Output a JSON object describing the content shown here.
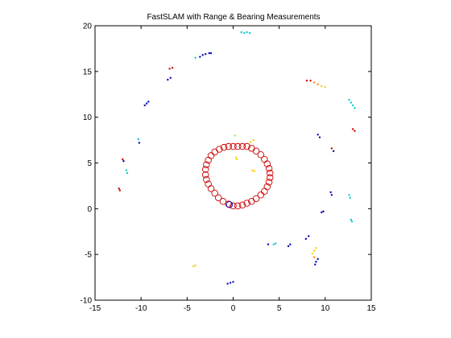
{
  "chart_data": {
    "type": "scatter",
    "title": "FastSLAM with Range & Bearing Measurements",
    "xlabel": "",
    "ylabel": "",
    "xlim": [
      -15,
      15
    ],
    "ylim": [
      -10,
      20
    ],
    "xticks": [
      -15,
      -10,
      -5,
      0,
      5,
      10,
      15
    ],
    "yticks": [
      -10,
      -5,
      0,
      5,
      10,
      15,
      20
    ],
    "grid": false,
    "legend": "none",
    "series": [
      {
        "color": "#cc0000",
        "marker": "circle",
        "points": [
          [
            -0.5,
            0.5
          ],
          [
            0,
            0.3
          ],
          [
            0.5,
            0.3
          ],
          [
            1.0,
            0.4
          ],
          [
            1.5,
            0.6
          ],
          [
            2.0,
            0.8
          ],
          [
            2.5,
            1.1
          ],
          [
            3.0,
            1.5
          ],
          [
            3.4,
            1.9
          ],
          [
            3.7,
            2.4
          ],
          [
            3.9,
            2.9
          ],
          [
            4.0,
            3.4
          ],
          [
            4.0,
            3.9
          ],
          [
            3.9,
            4.4
          ],
          [
            3.7,
            4.9
          ],
          [
            3.4,
            5.4
          ],
          [
            3.0,
            5.9
          ],
          [
            2.5,
            6.3
          ],
          [
            2.0,
            6.6
          ],
          [
            1.5,
            6.8
          ],
          [
            1.0,
            6.8
          ],
          [
            0.5,
            6.8
          ],
          [
            0.0,
            6.8
          ],
          [
            -0.5,
            6.8
          ],
          [
            -1.0,
            6.7
          ],
          [
            -1.5,
            6.5
          ],
          [
            -2.0,
            6.2
          ],
          [
            -2.4,
            5.8
          ],
          [
            -2.7,
            5.3
          ],
          [
            -2.9,
            4.8
          ],
          [
            -3.0,
            4.3
          ],
          [
            -3.0,
            3.7
          ],
          [
            -2.9,
            3.2
          ],
          [
            -2.7,
            2.7
          ],
          [
            -2.4,
            2.2
          ],
          [
            -2.0,
            1.7
          ],
          [
            -1.6,
            1.2
          ],
          [
            -1.1,
            0.8
          ]
        ]
      },
      {
        "color": "#0000cc",
        "marker": "circle",
        "points": [
          [
            -0.4,
            0.45
          ]
        ]
      }
    ],
    "landmarks": [
      {
        "x": 0.9,
        "y": 19.3,
        "color": "#00cccc"
      },
      {
        "x": 1.2,
        "y": 19.2,
        "color": "#00cccc"
      },
      {
        "x": 1.5,
        "y": 19.3,
        "color": "#00cccc"
      },
      {
        "x": 1.8,
        "y": 19.2,
        "color": "#00cccc"
      },
      {
        "x": -3.6,
        "y": 16.6,
        "color": "#0000cc"
      },
      {
        "x": -3.3,
        "y": 16.8,
        "color": "#0000cc"
      },
      {
        "x": -3.0,
        "y": 16.9,
        "color": "#0000cc"
      },
      {
        "x": -2.6,
        "y": 17.0,
        "color": "#0000cc"
      },
      {
        "x": -2.4,
        "y": 17.0,
        "color": "#0000cc"
      },
      {
        "x": -4.1,
        "y": 16.5,
        "color": "#00cccc"
      },
      {
        "x": -6.9,
        "y": 15.3,
        "color": "#cc0000"
      },
      {
        "x": -6.6,
        "y": 15.4,
        "color": "#cc0000"
      },
      {
        "x": -7.1,
        "y": 14.1,
        "color": "#0000cc"
      },
      {
        "x": -6.8,
        "y": 14.3,
        "color": "#0000cc"
      },
      {
        "x": -9.4,
        "y": 11.5,
        "color": "#0000cc"
      },
      {
        "x": -9.2,
        "y": 11.7,
        "color": "#0000cc"
      },
      {
        "x": -9.6,
        "y": 11.3,
        "color": "#000080"
      },
      {
        "x": -10.3,
        "y": 7.6,
        "color": "#00cccc"
      },
      {
        "x": -10.2,
        "y": 7.2,
        "color": "#0000cc"
      },
      {
        "x": -12.0,
        "y": 5.4,
        "color": "#cc0000"
      },
      {
        "x": -11.9,
        "y": 5.2,
        "color": "#0000cc"
      },
      {
        "x": -11.6,
        "y": 4.2,
        "color": "#00cccc"
      },
      {
        "x": -11.5,
        "y": 3.9,
        "color": "#00cccc"
      },
      {
        "x": -12.4,
        "y": 2.2,
        "color": "#cc0000"
      },
      {
        "x": -12.3,
        "y": 2.0,
        "color": "#cc0000"
      },
      {
        "x": 8.0,
        "y": 14.0,
        "color": "#cc0000"
      },
      {
        "x": 8.4,
        "y": 14.0,
        "color": "#cc0000"
      },
      {
        "x": 8.8,
        "y": 13.8,
        "color": "#ff8800"
      },
      {
        "x": 9.2,
        "y": 13.6,
        "color": "#ff8800"
      },
      {
        "x": 9.6,
        "y": 13.4,
        "color": "#ffcc00"
      },
      {
        "x": 10.0,
        "y": 13.3,
        "color": "#ffcc00"
      },
      {
        "x": 12.6,
        "y": 11.9,
        "color": "#00cccc"
      },
      {
        "x": 12.8,
        "y": 11.6,
        "color": "#00cccc"
      },
      {
        "x": 13.0,
        "y": 11.3,
        "color": "#00cccc"
      },
      {
        "x": 13.2,
        "y": 11.0,
        "color": "#00cccc"
      },
      {
        "x": 13.0,
        "y": 8.7,
        "color": "#cc0000"
      },
      {
        "x": 13.2,
        "y": 8.5,
        "color": "#cc0000"
      },
      {
        "x": 9.2,
        "y": 8.1,
        "color": "#0000cc"
      },
      {
        "x": 9.4,
        "y": 7.8,
        "color": "#0000cc"
      },
      {
        "x": 10.7,
        "y": 6.6,
        "color": "#cc0000"
      },
      {
        "x": 10.9,
        "y": 6.3,
        "color": "#000080"
      },
      {
        "x": 10.6,
        "y": 1.8,
        "color": "#0000cc"
      },
      {
        "x": 10.7,
        "y": 1.5,
        "color": "#0000cc"
      },
      {
        "x": 12.6,
        "y": 1.5,
        "color": "#00cccc"
      },
      {
        "x": 12.7,
        "y": 1.2,
        "color": "#00cccc"
      },
      {
        "x": 12.8,
        "y": -1.2,
        "color": "#00cccc"
      },
      {
        "x": 12.9,
        "y": -1.4,
        "color": "#00cccc"
      },
      {
        "x": 9.6,
        "y": -0.4,
        "color": "#0000cc"
      },
      {
        "x": 9.8,
        "y": -0.3,
        "color": "#000080"
      },
      {
        "x": 8.2,
        "y": -3.0,
        "color": "#000080"
      },
      {
        "x": 7.9,
        "y": -3.3,
        "color": "#0000cc"
      },
      {
        "x": 6.2,
        "y": -3.9,
        "color": "#0000cc"
      },
      {
        "x": 6.0,
        "y": -4.1,
        "color": "#000080"
      },
      {
        "x": 4.6,
        "y": -3.8,
        "color": "#00cccc"
      },
      {
        "x": 4.4,
        "y": -3.9,
        "color": "#00cccc"
      },
      {
        "x": 3.8,
        "y": -3.9,
        "color": "#0000cc"
      },
      {
        "x": 9.0,
        "y": -4.3,
        "color": "#ffcc00"
      },
      {
        "x": 8.8,
        "y": -4.6,
        "color": "#ffcc00"
      },
      {
        "x": 8.6,
        "y": -4.9,
        "color": "#ffcc00"
      },
      {
        "x": 8.8,
        "y": -5.3,
        "color": "#ff8800"
      },
      {
        "x": 9.2,
        "y": -5.5,
        "color": "#0000cc"
      },
      {
        "x": 9.0,
        "y": -5.8,
        "color": "#0000cc"
      },
      {
        "x": 8.9,
        "y": -6.1,
        "color": "#0000cc"
      },
      {
        "x": -4.3,
        "y": -6.3,
        "color": "#ffcc00"
      },
      {
        "x": -4.1,
        "y": -6.2,
        "color": "#ffcc00"
      },
      {
        "x": -0.6,
        "y": -8.2,
        "color": "#0000cc"
      },
      {
        "x": -0.3,
        "y": -8.1,
        "color": "#0000cc"
      },
      {
        "x": 0.0,
        "y": -8.0,
        "color": "#0000cc"
      },
      {
        "x": 1.9,
        "y": 7.3,
        "color": "#ffcc00"
      },
      {
        "x": 2.2,
        "y": 7.5,
        "color": "#ffcc00"
      },
      {
        "x": 2.1,
        "y": 4.2,
        "color": "#ffcc00"
      },
      {
        "x": 2.3,
        "y": 4.1,
        "color": "#ffcc00"
      },
      {
        "x": 0.3,
        "y": 5.6,
        "color": "#ffcc00"
      },
      {
        "x": 0.4,
        "y": 5.4,
        "color": "#ffcc00"
      },
      {
        "x": 0.2,
        "y": 8.0,
        "color": "#88ee44"
      }
    ]
  }
}
